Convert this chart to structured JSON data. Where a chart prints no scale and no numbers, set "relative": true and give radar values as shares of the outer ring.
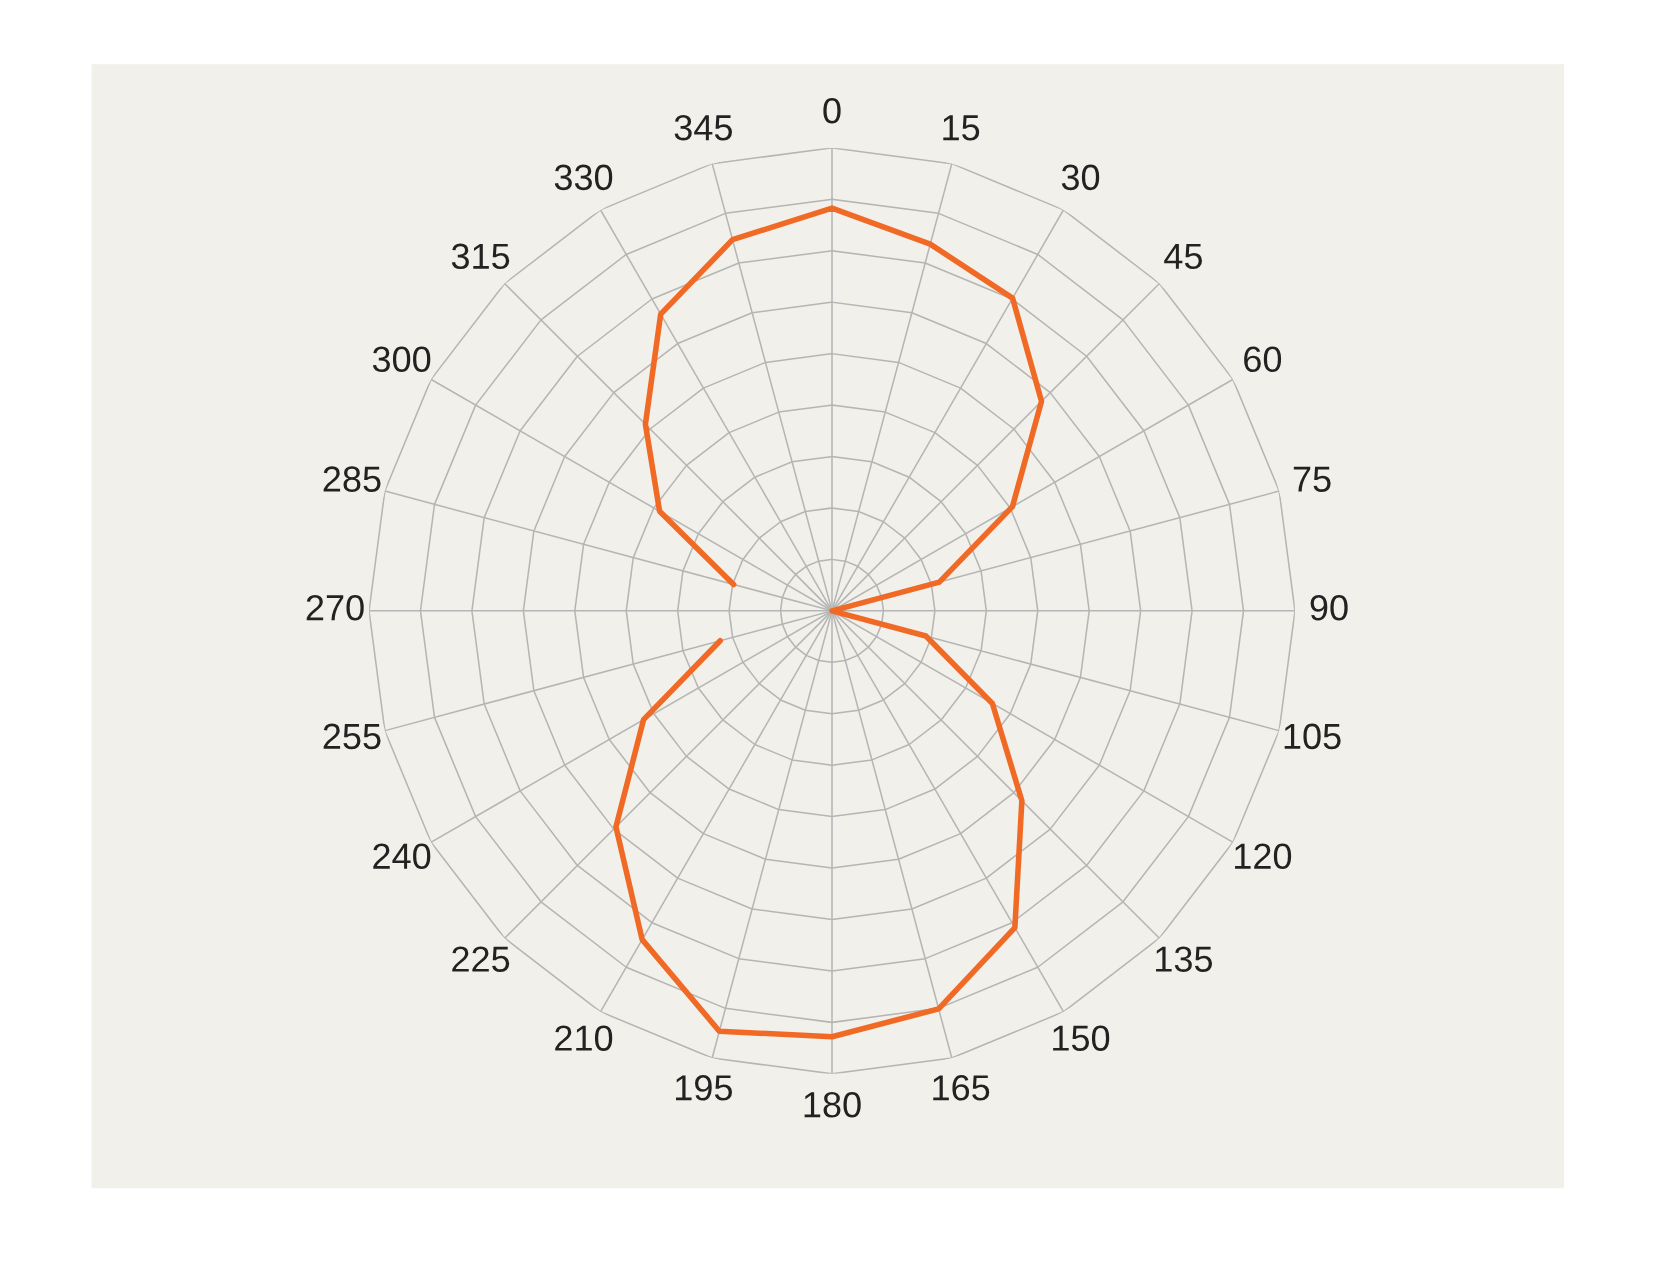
{
  "chart_data": {
    "type": "radar",
    "relative": true,
    "grid": true,
    "categories": [
      "0",
      "15",
      "30",
      "45",
      "60",
      "75",
      "90",
      "105",
      "120",
      "135",
      "150",
      "165",
      "180",
      "195",
      "210",
      "225",
      "240",
      "255",
      "270",
      "285",
      "300",
      "315",
      "330",
      "345"
    ],
    "series": [
      {
        "color": "#f06a25",
        "values": [
          0.87,
          0.82,
          0.78,
          0.64,
          0.45,
          0.24,
          0,
          0.21,
          0.4,
          0.58,
          0.79,
          0.89,
          0.92,
          0.94,
          0.82,
          0.66,
          0.47,
          0.25,
          null,
          0.22,
          0.43,
          0.57,
          0.74,
          0.83
        ]
      }
    ]
  }
}
